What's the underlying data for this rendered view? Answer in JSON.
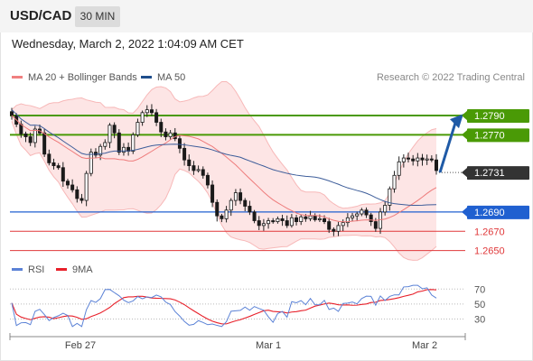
{
  "header": {
    "symbol": "USD/CAD",
    "timeframe": "30 MIN",
    "datetime": "Wednesday, March 2, 2022 1:04:09 AM CET"
  },
  "legend": {
    "bollinger_label": "MA 20 + Bollinger Bands",
    "bollinger_color": "#f08080",
    "ma50_label": "MA 50",
    "ma50_color": "#1f4e8c",
    "credit": "Research © 2022 Trading Central"
  },
  "rsi_legend": {
    "rsi_label": "RSI",
    "rsi_color": "#5b82d6",
    "ma_label": "9MA",
    "ma_color": "#e8202a"
  },
  "colors": {
    "resistance": "#4a9a06",
    "support": "#2060d0",
    "support_red": "#e0383a",
    "current": "#333333",
    "arrow": "#1f5aa6",
    "band_fill": "#fde0e0"
  },
  "chart_data": {
    "type": "candlestick",
    "x_labels": [
      "Feb 27",
      "Mar 1",
      "Mar 2"
    ],
    "price_range": [
      1.2645,
      1.2805
    ],
    "current_price": 1.2731,
    "levels": [
      {
        "value": 1.279,
        "label": "1.2790",
        "kind": "resistance"
      },
      {
        "value": 1.277,
        "label": "1.2770",
        "kind": "resistance"
      },
      {
        "value": 1.269,
        "label": "1.2690",
        "kind": "support"
      },
      {
        "value": 1.267,
        "label": "1.2670",
        "kind": "support-red"
      },
      {
        "value": 1.265,
        "label": "1.2650",
        "kind": "support-red"
      }
    ],
    "current_label": "1.2731",
    "projection": {
      "from": 1.2731,
      "to": 1.2788
    },
    "closes": [
      1.279,
      1.2781,
      1.2771,
      1.2768,
      1.2762,
      1.2776,
      1.2772,
      1.275,
      1.2741,
      1.2738,
      1.2736,
      1.2722,
      1.2718,
      1.2713,
      1.2704,
      1.2702,
      1.273,
      1.2752,
      1.2749,
      1.2758,
      1.2762,
      1.278,
      1.2772,
      1.2752,
      1.2757,
      1.2753,
      1.277,
      1.2783,
      1.2793,
      1.2796,
      1.2793,
      1.2783,
      1.2773,
      1.2768,
      1.2772,
      1.2766,
      1.2756,
      1.2744,
      1.2738,
      1.2733,
      1.2734,
      1.2728,
      1.2718,
      1.27,
      1.2686,
      1.2683,
      1.2692,
      1.2702,
      1.271,
      1.2702,
      1.2696,
      1.269,
      1.2681,
      1.2676,
      1.2678,
      1.2681,
      1.268,
      1.2683,
      1.2681,
      1.2676,
      1.2684,
      1.268,
      1.2685,
      1.2683,
      1.2686,
      1.2682,
      1.2683,
      1.268,
      1.2672,
      1.267,
      1.2676,
      1.2679,
      1.2684,
      1.2686,
      1.2688,
      1.2692,
      1.2687,
      1.268,
      1.2673,
      1.269,
      1.2697,
      1.2714,
      1.2728,
      1.2742,
      1.2746,
      1.2745,
      1.2743,
      1.2746,
      1.2744,
      1.2745,
      1.2744,
      1.2733
    ]
  },
  "rsi": {
    "levels": [
      70,
      50,
      30
    ],
    "level_labels": [
      "70",
      "50",
      "30"
    ],
    "range": [
      15,
      80
    ],
    "current": 58
  }
}
